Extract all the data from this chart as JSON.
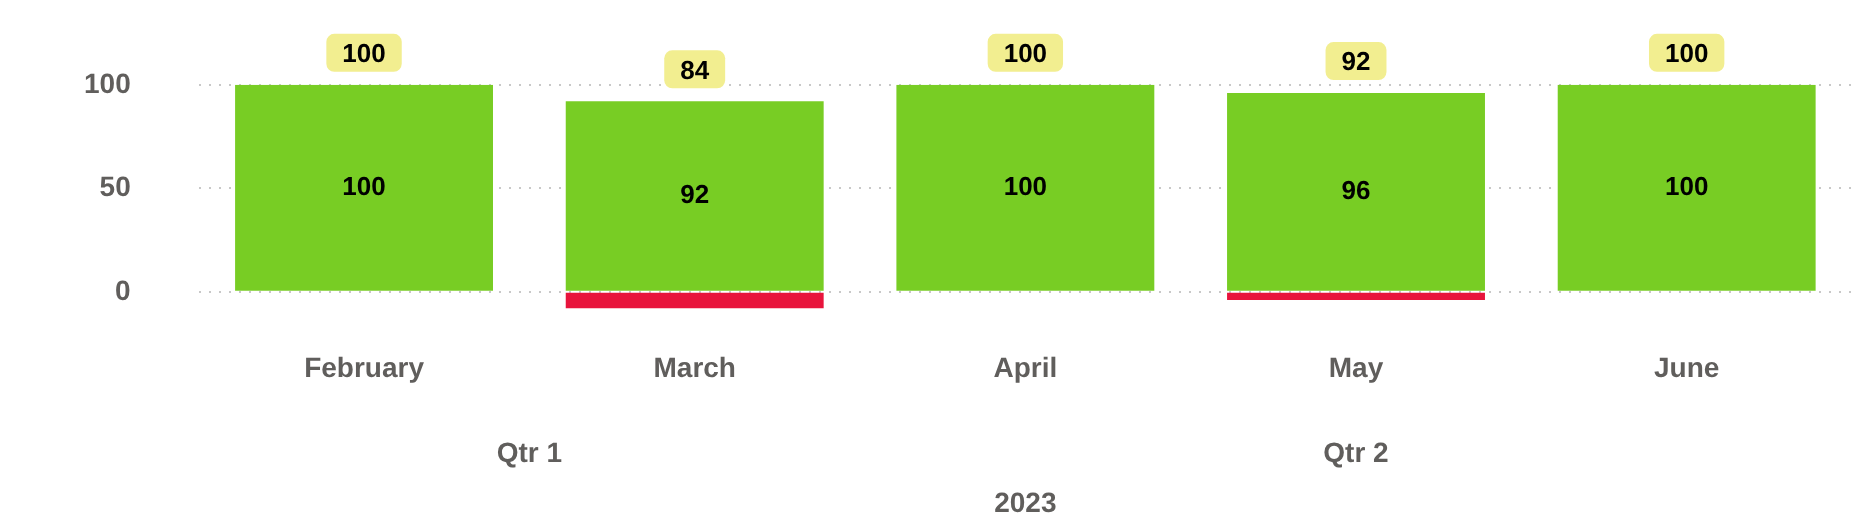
{
  "chart_data": {
    "type": "bar",
    "stacked": true,
    "categories": [
      "February",
      "March",
      "April",
      "May",
      "June"
    ],
    "series": [
      {
        "color": "#78cd24",
        "values": [
          100,
          92,
          100,
          96,
          100
        ],
        "value_labels": [
          "100",
          "92",
          "100",
          "96",
          "100"
        ]
      },
      {
        "color": "#e8143c",
        "values": [
          0,
          -8,
          0,
          -4,
          0
        ]
      }
    ],
    "totals": [
      "100",
      "84",
      "100",
      "92",
      "100"
    ],
    "ylim": [
      -8,
      100
    ],
    "yticks": [
      0,
      50,
      100
    ],
    "grid": "y",
    "legend": false,
    "annotations": [
      "Qtr 1",
      "Qtr 2",
      "2023"
    ]
  }
}
